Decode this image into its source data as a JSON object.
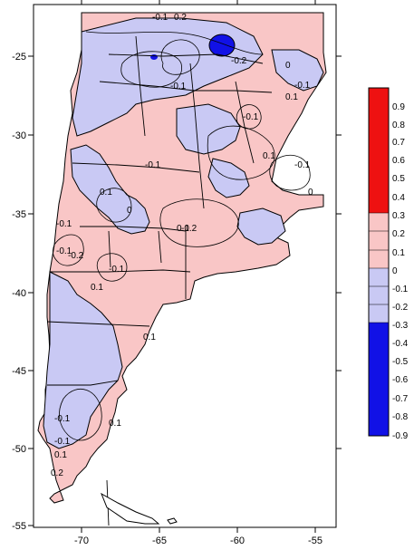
{
  "colors": {
    "positive_light": "#f9c6c6",
    "negative_light": "#c9c9f4",
    "strong_negative": "#1111e6",
    "strong_positive": "#ee1111",
    "outline": "#000000",
    "frame": "#000000"
  },
  "axes": {
    "x_ticks": [
      "-70",
      "-65",
      "-60",
      "-55"
    ],
    "y_ticks": [
      "-25",
      "-30",
      "-35",
      "-40",
      "-45",
      "-50",
      "-55"
    ]
  },
  "contour_labels": [
    "-0.1",
    "0.2",
    "-0.1",
    "-0.2",
    "0",
    "-0.1",
    "0.1",
    "-0.1",
    "-0.1",
    "0.1",
    "0",
    "-0.1",
    "0.1",
    "-0.1",
    "0",
    "0.1",
    "-0.2",
    "-0.1",
    "-0.2",
    "0.1",
    "-0.1",
    "0.1",
    "-0.1",
    "0.1",
    "-0.1",
    "0.1",
    "0.2"
  ],
  "legend": {
    "labels": [
      "0.9",
      "0.8",
      "0.7",
      "0.6",
      "0.5",
      "0.4",
      "0.3",
      "0.2",
      "0.1",
      "0",
      "-0.1",
      "-0.2",
      "-0.3",
      "-0.4",
      "-0.5",
      "-0.6",
      "-0.7",
      "-0.8",
      "-0.9"
    ],
    "bins": [
      {
        "range": [
          0.3,
          1.0
        ],
        "color": "#ee1111"
      },
      {
        "range": [
          0.0,
          0.3
        ],
        "color": "#f9c6c6"
      },
      {
        "range": [
          -0.3,
          0.0
        ],
        "color": "#c9c9f4"
      },
      {
        "range": [
          -1.0,
          -0.3
        ],
        "color": "#1111e6"
      }
    ]
  }
}
